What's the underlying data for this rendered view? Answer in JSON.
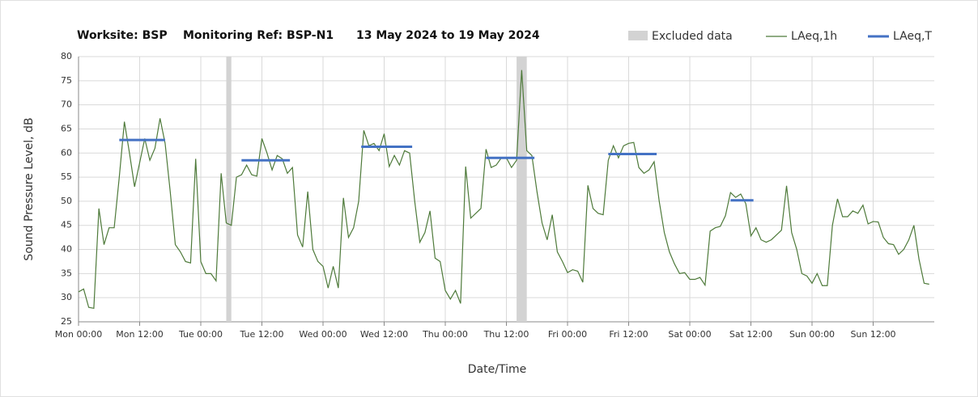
{
  "chart_data": {
    "type": "line",
    "title": [
      "Worksite: BSP",
      "Monitoring Ref: BSP-N1",
      "13 May 2024 to 19 May 2024"
    ],
    "xlabel": "Date/Time",
    "ylabel": "Sound Pressure Level, dB",
    "xlim": [
      0,
      168
    ],
    "ylim": [
      25,
      80
    ],
    "yticks": [
      25,
      30,
      35,
      40,
      45,
      50,
      55,
      60,
      65,
      70,
      75,
      80
    ],
    "xticks": [
      {
        "value": 0,
        "label": "Mon 00:00"
      },
      {
        "value": 12,
        "label": "Mon 12:00"
      },
      {
        "value": 24,
        "label": "Tue 00:00"
      },
      {
        "value": 36,
        "label": "Tue 12:00"
      },
      {
        "value": 48,
        "label": "Wed 00:00"
      },
      {
        "value": 60,
        "label": "Wed 12:00"
      },
      {
        "value": 72,
        "label": "Thu 00:00"
      },
      {
        "value": 84,
        "label": "Thu 12:00"
      },
      {
        "value": 96,
        "label": "Fri 00:00"
      },
      {
        "value": 108,
        "label": "Fri 12:00"
      },
      {
        "value": 120,
        "label": "Sat 00:00"
      },
      {
        "value": 132,
        "label": "Sat 12:00"
      },
      {
        "value": 144,
        "label": "Sun 00:00"
      },
      {
        "value": 156,
        "label": "Sun 12:00"
      }
    ],
    "grid": true,
    "x": [
      0,
      1,
      2,
      3,
      4,
      5,
      6,
      7,
      8,
      9,
      10,
      11,
      12,
      13,
      14,
      15,
      16,
      17,
      18,
      19,
      20,
      21,
      22,
      23,
      24,
      25,
      26,
      27,
      28,
      29,
      30,
      31,
      32,
      33,
      34,
      35,
      36,
      37,
      38,
      39,
      40,
      41,
      42,
      43,
      44,
      45,
      46,
      47,
      48,
      49,
      50,
      51,
      52,
      53,
      54,
      55,
      56,
      57,
      58,
      59,
      60,
      61,
      62,
      63,
      64,
      65,
      66,
      67,
      68,
      69,
      70,
      71,
      72,
      73,
      74,
      75,
      76,
      77,
      78,
      79,
      80,
      81,
      82,
      83,
      84,
      85,
      86,
      87,
      88,
      89,
      90,
      91,
      92,
      93,
      94,
      95,
      96,
      97,
      98,
      99,
      100,
      101,
      102,
      103,
      104,
      105,
      106,
      107,
      108,
      109,
      110,
      111,
      112,
      113,
      114,
      115,
      116,
      117,
      118,
      119,
      120,
      121,
      122,
      123,
      124,
      125,
      126,
      127,
      128,
      129,
      130,
      131,
      132,
      133,
      134,
      135,
      136,
      137,
      138,
      139,
      140,
      141,
      142,
      143,
      144,
      145,
      146,
      147,
      148,
      149,
      150,
      151,
      152,
      153,
      154,
      155,
      156,
      157,
      158,
      159,
      160,
      161,
      162,
      163,
      164,
      165,
      166,
      167
    ],
    "series": [
      {
        "name": "LAeq,1h",
        "color": "#4e7a3a",
        "values": [
          31.2,
          31.8,
          28,
          27.8,
          48.5,
          41,
          44.5,
          44.5,
          55,
          66.5,
          60,
          53,
          58,
          63,
          58.5,
          61,
          67.2,
          62,
          52,
          41,
          39.5,
          37.5,
          37.2,
          58.8,
          37.5,
          35,
          35,
          33.5,
          55.8,
          45.5,
          45,
          55,
          55.5,
          57.5,
          55.5,
          55.2,
          63,
          60,
          56.5,
          59.5,
          58.8,
          55.8,
          57,
          43,
          40.5,
          52,
          40,
          37.5,
          36.5,
          32,
          36.5,
          32,
          50.7,
          42.5,
          44.5,
          50,
          64.7,
          61.5,
          62,
          60.5,
          64,
          57.2,
          59.5,
          57.5,
          60.5,
          60,
          50,
          41.5,
          43.5,
          48,
          38.2,
          37.5,
          31.5,
          29.7,
          31.5,
          28.8,
          57.2,
          46.5,
          47.5,
          48.5,
          60.8,
          57,
          57.5,
          59,
          59,
          57,
          58.5,
          77.2,
          60.5,
          59.5,
          52,
          45.5,
          42,
          47.2,
          39.5,
          37.5,
          35.2,
          35.8,
          35.5,
          33.2,
          53.3,
          48.5,
          47.5,
          47.2,
          58.5,
          61.5,
          59,
          61.5,
          62,
          62.2,
          57,
          55.8,
          56.5,
          58.2,
          50,
          43.5,
          39.5,
          37,
          35,
          35.2,
          33.8,
          33.8,
          34.2,
          32.6,
          43.8,
          44.5,
          44.8,
          47,
          51.8,
          50.8,
          51.5,
          49.5,
          42.8,
          44.5,
          42,
          41.5,
          42,
          43,
          44,
          53.2,
          43.5,
          40,
          35,
          34.5,
          33,
          35,
          32.5,
          32.5,
          45,
          50.5,
          46.8,
          46.8,
          48,
          47.5,
          49.2,
          45.3,
          45.8,
          45.7,
          42.5,
          41.2,
          41,
          39,
          40,
          42,
          45,
          38,
          33,
          32.8
        ]
      }
    ],
    "excluded": {
      "name": "Excluded data",
      "color": "#d3d3d3",
      "ranges": [
        [
          29,
          30
        ],
        [
          86,
          88
        ]
      ]
    },
    "laeq_t": {
      "name": "LAeq,T",
      "color": "#4472c4",
      "segments": [
        {
          "start": 8,
          "end": 17,
          "value": 62.7
        },
        {
          "start": 32,
          "end": 41.5,
          "value": 58.5
        },
        {
          "start": 55.5,
          "end": 65.5,
          "value": 61.3
        },
        {
          "start": 80,
          "end": 89.5,
          "value": 59
        },
        {
          "start": 104,
          "end": 113.5,
          "value": 59.8
        },
        {
          "start": 128,
          "end": 132.5,
          "value": 50.2
        }
      ]
    }
  }
}
